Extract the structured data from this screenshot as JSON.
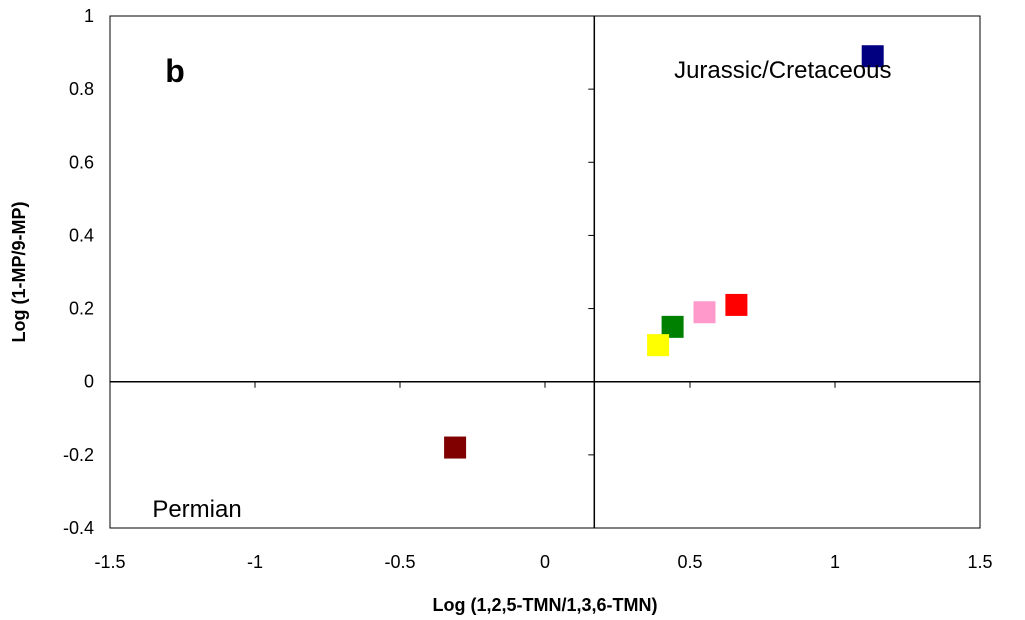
{
  "chart_data": {
    "type": "scatter",
    "panel_label": "b",
    "xlabel": "Log (1,2,5-TMN/1,3,6-TMN)",
    "ylabel": "Log (1-MP/9-MP)",
    "xlim": [
      -1.5,
      1.5
    ],
    "ylim": [
      -0.4,
      1
    ],
    "x_ticks": [
      -1.5,
      -1,
      -0.5,
      0,
      0.5,
      1,
      1.5
    ],
    "x_tick_labels": [
      "-1.5",
      "-1",
      "-0.5",
      "0",
      "0.5",
      "1",
      "1.5"
    ],
    "y_ticks": [
      -0.4,
      -0.2,
      0,
      0.2,
      0.4,
      0.6,
      0.8,
      1
    ],
    "y_tick_labels": [
      "-0.4",
      "-0.2",
      "0",
      "0.2",
      "0.4",
      "0.6",
      "0.8",
      "1"
    ],
    "y_axis_crosses_x_at": 0.17,
    "x_axis_crosses_y_at": 0,
    "grid": false,
    "legend": "none",
    "annotations": [
      {
        "text": "Jurassic/Cretaceous",
        "x": 0.82,
        "y": 0.83
      },
      {
        "text": "Permian",
        "x": -1.2,
        "y": -0.37
      }
    ],
    "points": [
      {
        "x": 1.13,
        "y": 0.89,
        "color": "#000080"
      },
      {
        "x": 0.66,
        "y": 0.21,
        "color": "#ff0000"
      },
      {
        "x": 0.55,
        "y": 0.19,
        "color": "#ff99cc"
      },
      {
        "x": 0.44,
        "y": 0.15,
        "color": "#008000"
      },
      {
        "x": 0.39,
        "y": 0.1,
        "color": "#ffff00"
      },
      {
        "x": -0.31,
        "y": -0.18,
        "color": "#800000"
      }
    ]
  }
}
